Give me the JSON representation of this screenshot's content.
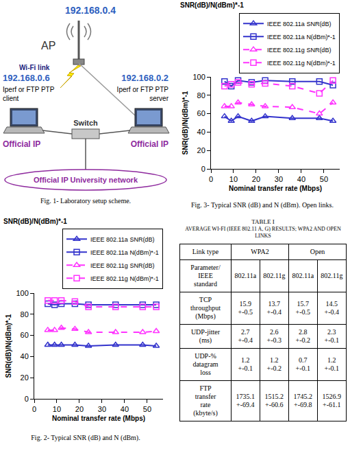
{
  "figure1": {
    "ap": {
      "ip": "192.168.0.4",
      "label": "AP"
    },
    "wifi_label": "Wi-Fi link",
    "client": {
      "ip": "192.168.0.6",
      "label": [
        "Iperf or FTP PTP",
        "client"
      ],
      "address": "Official IP"
    },
    "server": {
      "ip": "192.168.0.2",
      "label": [
        "Iperf or FTP PTP",
        "server"
      ],
      "address": "Official IP"
    },
    "switch": {
      "label": "Switch"
    },
    "network": {
      "label": "Official IP University network"
    },
    "caption": "Fig. 1- Laboratory setup scheme."
  },
  "chart_data": [
    {
      "type": "line",
      "title": "SNR(dB)/N(dBm)*-1",
      "x_label": "Nominal transfer rate (Mbps)",
      "y_label": "SNR(dB)/N(dBm)*-1",
      "caption": "Fig. 2- Typical SNR (dB) and N (dBm).",
      "x": [
        6,
        9,
        12,
        18,
        24,
        36,
        48,
        54
      ],
      "xlim": [
        0,
        57
      ],
      "xticks": [
        0,
        10,
        20,
        30,
        40,
        50
      ],
      "ylim": [
        0,
        100
      ],
      "yticks": [
        0,
        20,
        40,
        60,
        80,
        100
      ],
      "grid": false,
      "legend": "top right",
      "series": [
        {
          "name": "IEEE 802.11a SNR(dB)",
          "color": "#3333cc",
          "marker": "triangle",
          "line_style": "solid",
          "values": [
            51,
            51,
            51,
            51,
            50,
            51,
            51,
            50
          ]
        },
        {
          "name": "IEEE 802.11a N(dBm)*-1",
          "color": "#3333cc",
          "marker": "square",
          "line_style": "solid",
          "values": [
            90,
            89,
            90,
            90,
            89,
            89,
            89,
            89
          ]
        },
        {
          "name": "IEEE 802.11g SNR(dB)",
          "color": "#ff33ff",
          "marker": "triangle",
          "line_style": "dashed",
          "values": [
            65,
            65,
            67,
            66,
            63,
            63,
            63,
            64
          ]
        },
        {
          "name": "IEEE 802.11g N(dBm)*-1",
          "color": "#ff33ff",
          "marker": "square",
          "line_style": "dashed",
          "values": [
            93,
            93,
            93,
            92,
            87,
            87,
            87,
            87
          ]
        }
      ]
    },
    {
      "type": "line",
      "title": "SNR(dB)/N(dBm)*-1",
      "x_label": "Nominal transfer rate (Mbps)",
      "y_label": "SNR(dB)/N(dBm)*-1",
      "caption": "Fig. 3- Typical SNR (dB) and N (dBm). Open links.",
      "x": [
        6,
        9,
        12,
        18,
        24,
        36,
        48,
        54
      ],
      "xlim": [
        0,
        57
      ],
      "xticks": [
        0,
        10,
        20,
        30,
        40,
        50
      ],
      "ylim": [
        0,
        100
      ],
      "yticks": [
        0,
        20,
        40,
        60,
        80,
        100
      ],
      "grid": false,
      "legend": "top right",
      "series": [
        {
          "name": "IEEE 802.11a SNR(dB)",
          "color": "#3333cc",
          "marker": "triangle",
          "line_style": "solid",
          "values": [
            57,
            52,
            57,
            52,
            57,
            55,
            55,
            52
          ]
        },
        {
          "name": "IEEE 802.11a N(dBm)*-1",
          "color": "#3333cc",
          "marker": "square",
          "line_style": "solid",
          "values": [
            95,
            90,
            96,
            94,
            96,
            95,
            95,
            91
          ]
        },
        {
          "name": "IEEE 802.11g SNR(dB)",
          "color": "#ff33ff",
          "marker": "triangle",
          "line_style": "dashed",
          "values": [
            68,
            68,
            72,
            70,
            68,
            67,
            60,
            72
          ]
        },
        {
          "name": "IEEE 802.11g N(dBm)*-1",
          "color": "#ff33ff",
          "marker": "square",
          "line_style": "dashed",
          "values": [
            90,
            92,
            94,
            92,
            93,
            90,
            82,
            96
          ]
        }
      ]
    }
  ],
  "table1": {
    "title": "TABLE I",
    "subtitle": "AVERAGE WI-FI (IEEE 802.11 A, G) RESULTS; WPA2 AND OPEN LINKS",
    "header": [
      "Link type",
      "WPA2",
      "Open"
    ],
    "rows": [
      [
        [
          "Parameter/",
          "IEEE",
          "standard"
        ],
        [
          "802.11a"
        ],
        [
          "802.11g"
        ],
        [
          "802.11a"
        ],
        [
          "802.11g"
        ]
      ],
      [
        [
          "TCP",
          "throughput",
          "(Mbps)"
        ],
        [
          "15.9",
          "+-0.5"
        ],
        [
          "13.7",
          "+-0.4"
        ],
        [
          "15.7",
          "+-0.5"
        ],
        [
          "14.5",
          "+-0.4"
        ]
      ],
      [
        [
          "UDP-jitter",
          "(ms)"
        ],
        [
          "2.7",
          "+-0.4"
        ],
        [
          "2.6",
          "+-0.3"
        ],
        [
          "2.8",
          "+-0.2"
        ],
        [
          "2.3",
          "+-0.1"
        ]
      ],
      [
        [
          "UDP-%",
          "datagram",
          "loss"
        ],
        [
          "1.2",
          "+-0.1"
        ],
        [
          "1.2",
          "+-0.2"
        ],
        [
          "0.7",
          "+-0.1"
        ],
        [
          "1.2",
          "+-0.1"
        ]
      ],
      [
        [
          "FTP",
          "transfer",
          "rate",
          "(kbyte/s)"
        ],
        [
          "1735.1",
          "+-69.4"
        ],
        [
          "1515.2",
          "+-60.6"
        ],
        [
          "1745.2",
          "+-69.8"
        ],
        [
          "1526.9",
          "+-61.1"
        ]
      ]
    ]
  }
}
